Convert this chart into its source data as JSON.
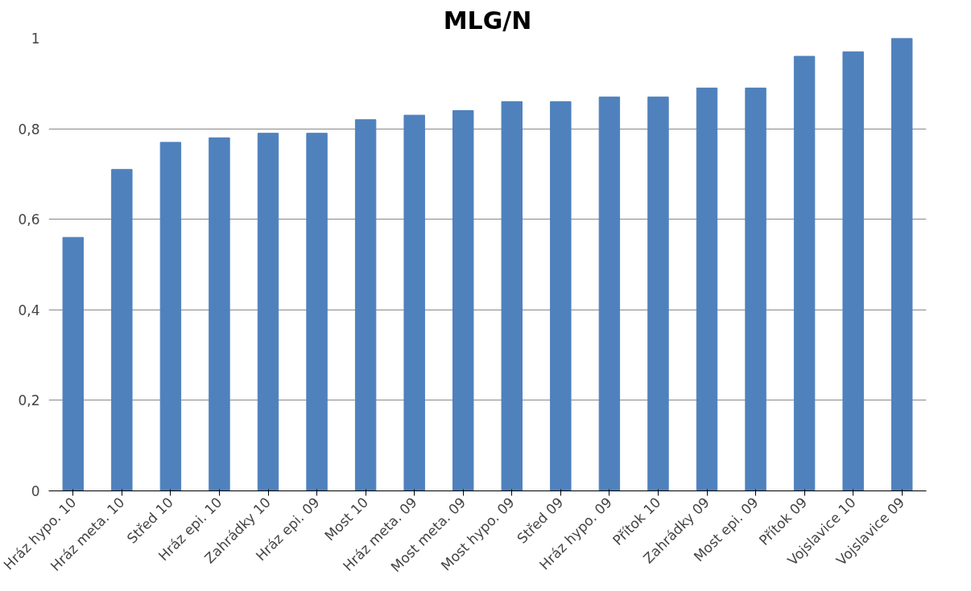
{
  "chart_data": {
    "type": "bar",
    "title": "MLG/N",
    "categories": [
      "Hráz hypo. 10",
      "Hráz meta. 10",
      "Střed 10",
      "Hráz epi. 10",
      "Zahrádky 10",
      "Hráz epi. 09",
      "Most 10",
      "Hráz meta. 09",
      "Most meta. 09",
      "Most hypo. 09",
      "Střed 09",
      "Hráz hypo. 09",
      "Přítok 10",
      "Zahrádky 09",
      "Most epi. 09",
      "Přítok 09",
      "Vojslavice 10",
      "Vojslavice 09"
    ],
    "values": [
      0.56,
      0.71,
      0.77,
      0.78,
      0.79,
      0.79,
      0.82,
      0.83,
      0.84,
      0.86,
      0.86,
      0.87,
      0.87,
      0.89,
      0.89,
      0.96,
      0.97,
      1.0
    ],
    "color": "#4f81bd",
    "ylim": [
      0,
      1
    ],
    "yticks": [
      0,
      {
        "value": 0.2,
        "label": "0,2"
      },
      {
        "value": 0.4,
        "label": "0,4"
      },
      {
        "value": 0.6,
        "label": "0,6"
      },
      {
        "value": 0.8,
        "label": "0,8"
      },
      1
    ],
    "grid": "y"
  }
}
